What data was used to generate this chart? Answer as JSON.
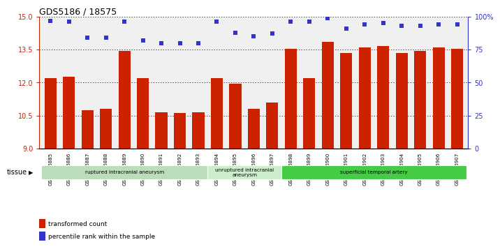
{
  "title": "GDS5186 / 18575",
  "samples": [
    "GSM1306885",
    "GSM1306886",
    "GSM1306887",
    "GSM1306888",
    "GSM1306889",
    "GSM1306890",
    "GSM1306891",
    "GSM1306892",
    "GSM1306893",
    "GSM1306894",
    "GSM1306895",
    "GSM1306896",
    "GSM1306897",
    "GSM1306898",
    "GSM1306899",
    "GSM1306900",
    "GSM1306901",
    "GSM1306902",
    "GSM1306903",
    "GSM1306904",
    "GSM1306905",
    "GSM1306906",
    "GSM1306907"
  ],
  "bar_values": [
    12.2,
    12.25,
    10.75,
    10.8,
    13.45,
    12.2,
    10.65,
    10.6,
    10.65,
    12.2,
    11.95,
    10.8,
    11.1,
    13.55,
    12.2,
    13.85,
    13.35,
    13.6,
    13.65,
    13.35,
    13.45,
    13.6,
    13.55
  ],
  "percentile_values": [
    97,
    96,
    84,
    84,
    96,
    82,
    80,
    80,
    80,
    96,
    88,
    85,
    87,
    96,
    96,
    99,
    91,
    94,
    95,
    93,
    93,
    94,
    94
  ],
  "ylim_left": [
    9,
    15
  ],
  "ylim_right": [
    0,
    100
  ],
  "yticks_left": [
    9,
    10.5,
    12,
    13.5,
    15
  ],
  "yticks_right": [
    0,
    25,
    50,
    75,
    100
  ],
  "ytick_labels_right": [
    "0",
    "25",
    "50",
    "75",
    "100%"
  ],
  "bar_color": "#cc2200",
  "dot_color": "#3333cc",
  "bg_color": "#f0f0f0",
  "groups": [
    {
      "label": "ruptured intracranial aneurysm",
      "start": 0,
      "end": 9,
      "color": "#bbddbb"
    },
    {
      "label": "unruptured intracranial\naneurysm",
      "start": 9,
      "end": 13,
      "color": "#cceecc"
    },
    {
      "label": "superficial temporal artery",
      "start": 13,
      "end": 23,
      "color": "#44cc44"
    }
  ],
  "tissue_label": "tissue",
  "legend_bar_label": "transformed count",
  "legend_dot_label": "percentile rank within the sample",
  "title_fontsize": 9,
  "tick_fontsize": 7,
  "xtick_fontsize": 5
}
